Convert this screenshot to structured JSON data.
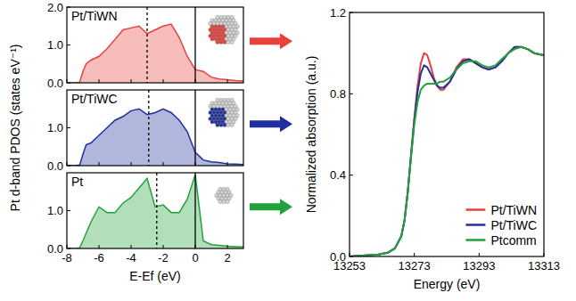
{
  "chart_data": [
    {
      "type": "area",
      "title": "Pt/TiWN",
      "color": "#e8413b",
      "x": [
        -8,
        -7.5,
        -7.2,
        -7,
        -6.8,
        -6.5,
        -6,
        -5.5,
        -5,
        -4.5,
        -4,
        -3.5,
        -3,
        -2.5,
        -2,
        -1.5,
        -1,
        -0.5,
        0,
        0.5,
        1,
        1.5,
        2,
        2.5,
        3
      ],
      "values": [
        0,
        0,
        0.02,
        0.3,
        0.5,
        0.6,
        0.7,
        0.9,
        1.15,
        1.4,
        1.45,
        1.5,
        1.3,
        1.4,
        1.5,
        1.55,
        1.2,
        0.7,
        0.35,
        0.3,
        0.15,
        0.1,
        0.08,
        0.06,
        0.05
      ],
      "xlim": [
        -8,
        3
      ],
      "ylim": [
        0,
        2
      ],
      "xticks": [
        -8,
        -6,
        -4,
        -2,
        0,
        2
      ],
      "yticks": [
        {
          "value": 0,
          "label": "0.0"
        },
        {
          "value": 1,
          "label": "1.0"
        },
        {
          "value": 2,
          "label": "2.0"
        }
      ],
      "tick_labels": "y",
      "vlines": [
        {
          "value": -3.0,
          "line_style": "dashed"
        },
        {
          "value": 0,
          "line_style": "solid"
        }
      ]
    },
    {
      "type": "area",
      "title": "Pt/TiWC",
      "color": "#1f2f9e",
      "ylabel": "Pt d-band PDOS (states eV⁻¹)",
      "x": [
        -8,
        -7.5,
        -7.2,
        -7,
        -6.8,
        -6.5,
        -6,
        -5.5,
        -5,
        -4.5,
        -4,
        -3.5,
        -3,
        -2.5,
        -2,
        -1.5,
        -1,
        -0.5,
        0,
        0.5,
        1,
        1.5,
        2,
        2.5,
        3
      ],
      "values": [
        0,
        0,
        0.02,
        0.3,
        0.55,
        0.6,
        0.8,
        1.0,
        1.2,
        1.3,
        1.45,
        1.5,
        1.35,
        1.4,
        1.5,
        1.4,
        1.2,
        0.9,
        0.35,
        0.15,
        0.1,
        0.08,
        0.05,
        0.04,
        0.03
      ],
      "xlim": [
        -8,
        3
      ],
      "ylim": [
        0,
        2
      ],
      "xticks": [
        -8,
        -6,
        -4,
        -2,
        0,
        2
      ],
      "yticks": [
        {
          "value": 0,
          "label": "0.0"
        },
        {
          "value": 1,
          "label": "1.0"
        }
      ],
      "tick_labels": "y",
      "vlines": [
        {
          "value": -2.9,
          "line_style": "dashed"
        },
        {
          "value": 0,
          "line_style": "solid"
        }
      ]
    },
    {
      "type": "area",
      "title": "Pt",
      "color": "#22a23a",
      "xlabel": "E-Ef (eV)",
      "x": [
        -8,
        -7.5,
        -7.2,
        -7,
        -6.8,
        -6.5,
        -6,
        -5.5,
        -5,
        -4.5,
        -4,
        -3.5,
        -3,
        -2.5,
        -2,
        -1.5,
        -1,
        -0.5,
        0,
        0.5,
        1,
        1.5,
        2,
        2.5,
        3
      ],
      "values": [
        0,
        0,
        0.02,
        0.2,
        0.4,
        0.7,
        1.1,
        0.95,
        0.95,
        1.2,
        1.35,
        1.6,
        1.85,
        1.1,
        1.15,
        0.95,
        0.95,
        1.3,
        1.95,
        0.2,
        0.1,
        0.08,
        0.06,
        0.05,
        0.04
      ],
      "xlim": [
        -8,
        3
      ],
      "ylim": [
        0,
        2
      ],
      "xticks": [
        -8,
        -6,
        -4,
        -2,
        0,
        2
      ],
      "yticks": [
        {
          "value": 0,
          "label": "0.0"
        },
        {
          "value": 1,
          "label": "1.0"
        }
      ],
      "vlines": [
        {
          "value": -2.4,
          "line_style": "dashed"
        },
        {
          "value": 0,
          "line_style": "solid"
        }
      ]
    },
    {
      "type": "line",
      "xlabel": "Energy (eV)",
      "ylabel": "Normalized absorption (a.u.)",
      "x": [
        13253,
        13258,
        13262,
        13265,
        13267,
        13269,
        13270,
        13271,
        13272,
        13273,
        13274,
        13275,
        13276,
        13277,
        13278,
        13279,
        13280,
        13281,
        13282,
        13284,
        13286,
        13288,
        13290,
        13292,
        13294,
        13296,
        13298,
        13300,
        13302,
        13304,
        13306,
        13308,
        13310,
        13313
      ],
      "series": [
        {
          "name": "Pt/TiWN",
          "color": "#e8413b",
          "values": [
            0.0,
            0.005,
            0.01,
            0.02,
            0.04,
            0.1,
            0.18,
            0.32,
            0.5,
            0.68,
            0.84,
            0.95,
            1.0,
            0.99,
            0.94,
            0.88,
            0.84,
            0.82,
            0.82,
            0.86,
            0.93,
            0.97,
            0.97,
            0.95,
            0.93,
            0.92,
            0.93,
            0.96,
            1.0,
            1.03,
            1.03,
            1.02,
            1.0,
            0.99
          ]
        },
        {
          "name": "Pt/TiWC",
          "color": "#1f2f9e",
          "values": [
            0.0,
            0.005,
            0.01,
            0.02,
            0.04,
            0.1,
            0.18,
            0.32,
            0.5,
            0.67,
            0.81,
            0.9,
            0.94,
            0.93,
            0.9,
            0.87,
            0.84,
            0.83,
            0.83,
            0.86,
            0.92,
            0.96,
            0.97,
            0.95,
            0.93,
            0.92,
            0.93,
            0.96,
            1.0,
            1.03,
            1.03,
            1.02,
            1.0,
            0.99
          ]
        },
        {
          "name": "Ptcomm",
          "color": "#22a23a",
          "values": [
            0.0,
            0.005,
            0.01,
            0.02,
            0.04,
            0.1,
            0.18,
            0.32,
            0.49,
            0.65,
            0.76,
            0.82,
            0.84,
            0.85,
            0.85,
            0.85,
            0.85,
            0.86,
            0.86,
            0.88,
            0.92,
            0.95,
            0.96,
            0.96,
            0.94,
            0.93,
            0.94,
            0.97,
            1.0,
            1.02,
            1.03,
            1.02,
            1.0,
            0.99
          ]
        }
      ],
      "xlim": [
        13253,
        13313
      ],
      "ylim": [
        0,
        1.2
      ],
      "xticks": [
        13253,
        13273,
        13293,
        13313
      ],
      "yticks": [
        {
          "value": 0,
          "label": "0.0"
        },
        0.4,
        0.8,
        1.2
      ],
      "legend": "lower right"
    }
  ]
}
